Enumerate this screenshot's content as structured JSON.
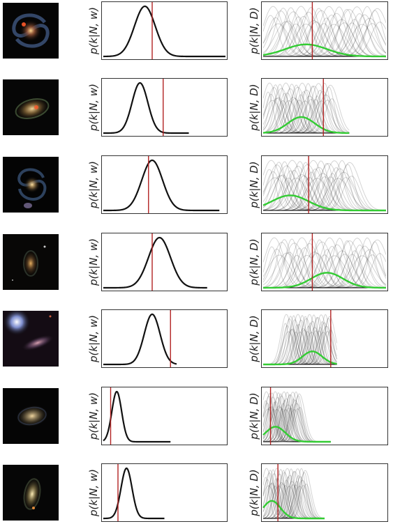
{
  "colors": {
    "posterior_w": "#111111",
    "truth_line": "#b22222",
    "posterior_D_samples": "#000000",
    "posterior_D_mean": "#33cc33",
    "frame": "#333333"
  },
  "labels": {
    "ylabel_w": "p(k|N, w)",
    "ylabel_D": "p(k|N, D)"
  },
  "chart_data": [
    {
      "type": "line",
      "galaxy": "grand-design spiral, face-on",
      "ylabel_w": "p(k|N, w)",
      "ylabel_D": "p(k|N, D)",
      "w": {
        "mean": 0.34,
        "sd": 0.085,
        "support": [
          0,
          1
        ]
      },
      "truth": 0.4,
      "D": {
        "support": [
          0,
          1
        ],
        "mean_peak": 0.35,
        "mean_sd": 0.17,
        "mean_amp": 0.24,
        "sample_centers": [
          0.06,
          0.95
        ],
        "sample_sd_range": [
          0.06,
          0.09
        ]
      }
    },
    {
      "type": "line",
      "galaxy": "compact spiral",
      "ylabel_w": "p(k|N, w)",
      "ylabel_D": "p(k|N, D)",
      "w": {
        "mean": 0.3,
        "sd": 0.065,
        "support": [
          0,
          0.7
        ]
      },
      "truth": 0.49,
      "D": {
        "support": [
          0,
          0.7
        ],
        "mean_peak": 0.31,
        "mean_sd": 0.11,
        "mean_amp": 0.32,
        "sample_centers": [
          0.04,
          0.56
        ],
        "sample_sd_range": [
          0.04,
          0.07
        ]
      }
    },
    {
      "type": "line",
      "galaxy": "barred spiral",
      "ylabel_w": "p(k|N, w)",
      "ylabel_D": "p(k|N, D)",
      "w": {
        "mean": 0.4,
        "sd": 0.085,
        "support": [
          0,
          0.95
        ]
      },
      "truth": 0.37,
      "D": {
        "support": [
          0,
          1
        ],
        "mean_peak": 0.22,
        "mean_sd": 0.15,
        "mean_amp": 0.3,
        "sample_centers": [
          0.05,
          0.72
        ],
        "sample_sd_range": [
          0.05,
          0.09
        ]
      }
    },
    {
      "type": "line",
      "galaxy": "faint spiral",
      "ylabel_w": "p(k|N, w)",
      "ylabel_D": "p(k|N, D)",
      "w": {
        "mean": 0.46,
        "sd": 0.09,
        "support": [
          0,
          0.85
        ]
      },
      "truth": 0.4,
      "D": {
        "support": [
          0,
          1
        ],
        "mean_peak": 0.52,
        "mean_sd": 0.13,
        "mean_amp": 0.3,
        "sample_centers": [
          0.07,
          0.95
        ],
        "sample_sd_range": [
          0.05,
          0.09
        ]
      }
    },
    {
      "type": "line",
      "galaxy": "edge-on with bright star",
      "ylabel_w": "p(k|N, w)",
      "ylabel_D": "p(k|N, D)",
      "w": {
        "mean": 0.4,
        "sd": 0.065,
        "support": [
          0,
          0.6
        ]
      },
      "truth": 0.55,
      "D": {
        "support": [
          0,
          0.6
        ],
        "mean_peak": 0.4,
        "mean_sd": 0.08,
        "mean_amp": 0.26,
        "sample_centers": [
          0.18,
          0.55
        ],
        "sample_sd_range": [
          0.03,
          0.05
        ]
      }
    },
    {
      "type": "line",
      "galaxy": "smooth elliptical-like spiral",
      "ylabel_w": "p(k|N, w)",
      "ylabel_D": "p(k|N, D)",
      "w": {
        "mean": 0.11,
        "sd": 0.04,
        "support": [
          0,
          0.55
        ]
      },
      "truth": 0.06,
      "D": {
        "support": [
          0,
          0.55
        ],
        "mean_peak": 0.1,
        "mean_sd": 0.08,
        "mean_amp": 0.3,
        "sample_centers": [
          0.02,
          0.3
        ],
        "sample_sd_range": [
          0.03,
          0.05
        ]
      }
    },
    {
      "type": "line",
      "galaxy": "inclined spiral",
      "ylabel_w": "p(k|N, w)",
      "ylabel_D": "p(k|N, D)",
      "w": {
        "mean": 0.19,
        "sd": 0.045,
        "support": [
          0,
          0.5
        ]
      },
      "truth": 0.12,
      "D": {
        "support": [
          0,
          0.5
        ],
        "mean_peak": 0.07,
        "mean_sd": 0.07,
        "mean_amp": 0.35,
        "sample_centers": [
          0.02,
          0.35
        ],
        "sample_sd_range": [
          0.03,
          0.05
        ]
      }
    }
  ]
}
